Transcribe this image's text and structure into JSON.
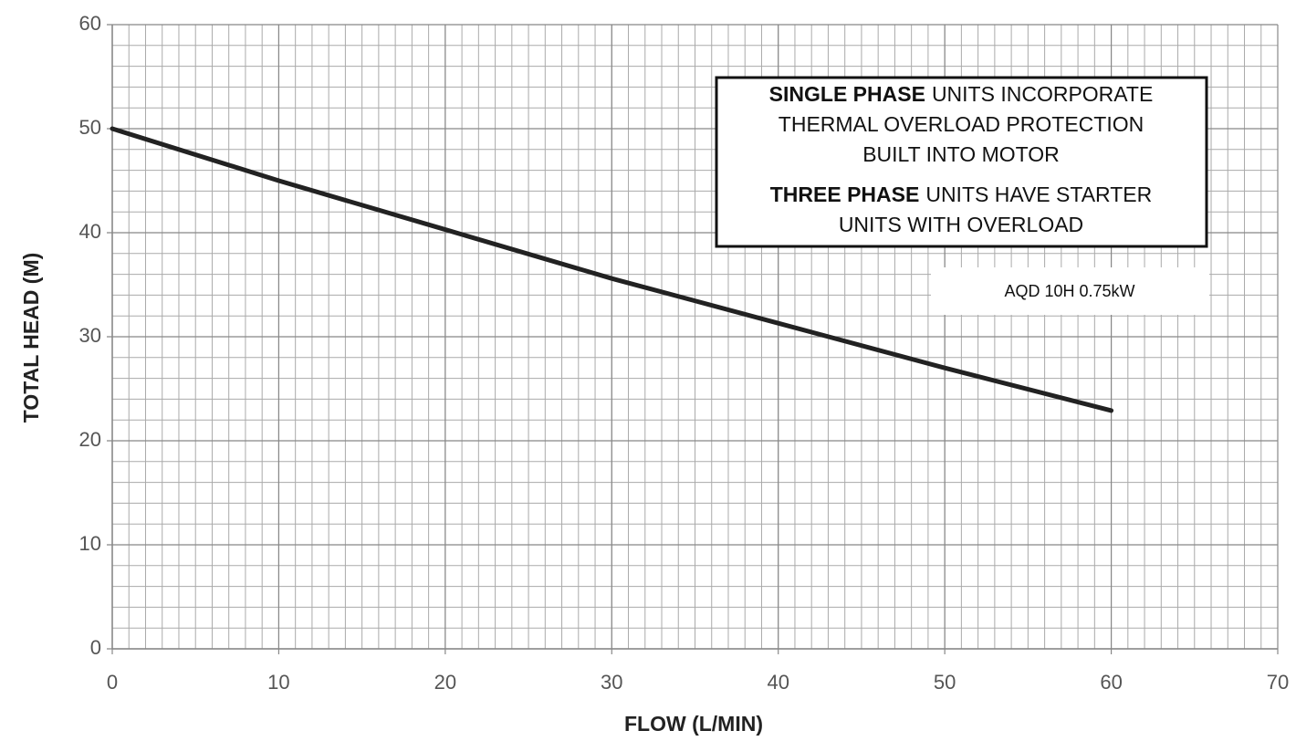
{
  "chart_data": {
    "type": "line",
    "x_label": "FLOW (L/MIN)",
    "y_label": "TOTAL HEAD (M)",
    "x": [
      0,
      10,
      20,
      30,
      40,
      50,
      60
    ],
    "series": [
      {
        "name": "AQD 10H 0.75kW",
        "color": "#222222",
        "values": [
          50,
          45,
          40.3,
          35.6,
          31.3,
          27,
          22.9
        ]
      }
    ],
    "xlim": [
      0,
      70
    ],
    "ylim": [
      0,
      60
    ],
    "xticks": [
      0,
      10,
      20,
      30,
      40,
      50,
      60,
      70
    ],
    "yticks": [
      0,
      10,
      20,
      30,
      40,
      50,
      60
    ],
    "grid": true,
    "minor_grid_step": [
      1,
      2
    ],
    "annotation": [
      {
        "bold": "SINGLE PHASE",
        "text": "UNITS INCORPORATE"
      },
      {
        "bold": null,
        "text": "THERMAL OVERLOAD PROTECTION"
      },
      {
        "bold": null,
        "text": "BUILT INTO MOTOR"
      },
      {
        "bold": "THREE PHASE",
        "text": "UNITS HAVE STARTER"
      },
      {
        "bold": null,
        "text": "UNITS WITH OVERLOAD"
      }
    ]
  }
}
